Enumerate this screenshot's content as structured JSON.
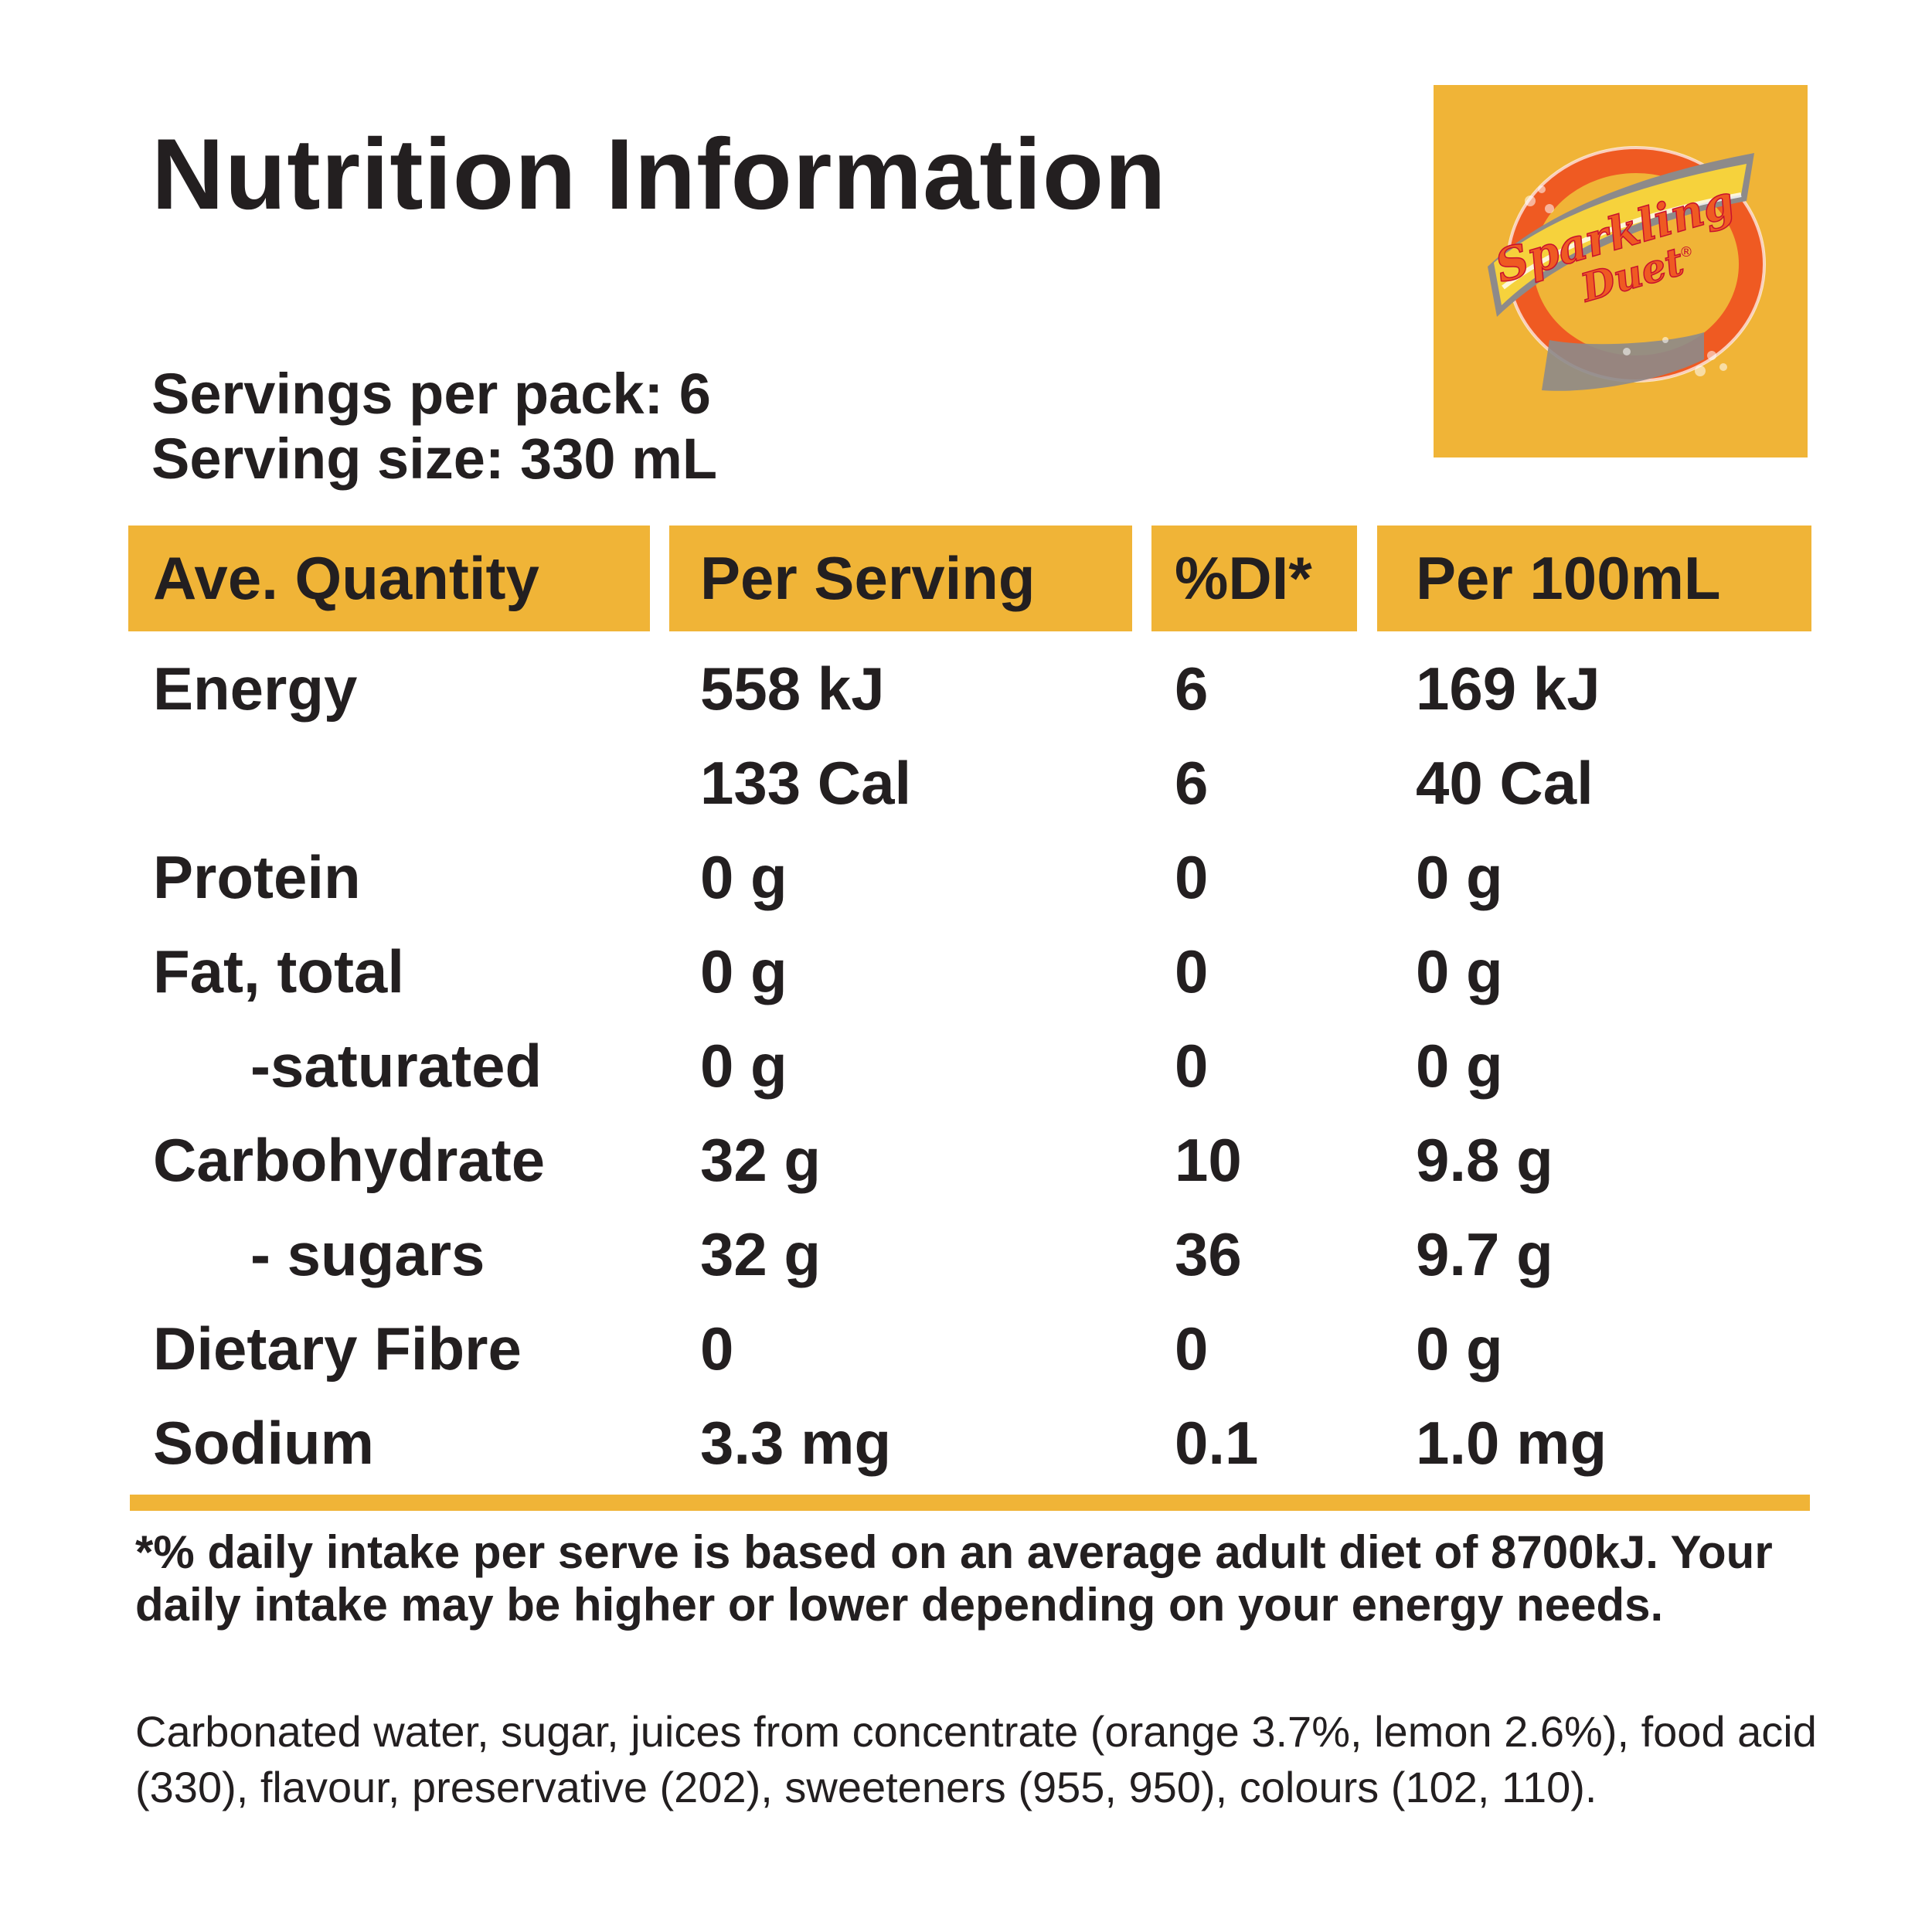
{
  "title": "Nutrition Information",
  "servings": {
    "per_pack": "Servings per pack: 6",
    "size": "Serving size: 330 mL"
  },
  "brand": {
    "logo_text_line1": "Sparkling",
    "logo_text_line2": "Duet",
    "registered": "®",
    "colors": {
      "background": "#f0b437",
      "ring": "#ef5a22",
      "ribbon": "#f6d23c"
    }
  },
  "table": {
    "headers": [
      "Ave. Quantity",
      "Per Serving",
      "%DI*",
      "Per 100mL"
    ],
    "rows": [
      {
        "name": "Energy",
        "per_serving": "558 kJ",
        "di": "6",
        "per_100ml": "169 kJ"
      },
      {
        "name": "",
        "per_serving": "133 Cal",
        "di": "6",
        "per_100ml": "40 Cal"
      },
      {
        "name": "Protein",
        "per_serving": "0 g",
        "di": "0",
        "per_100ml": "0 g"
      },
      {
        "name": "Fat, total",
        "per_serving": "0 g",
        "di": "0",
        "per_100ml": "0 g"
      },
      {
        "name": "-saturated",
        "per_serving": "0 g",
        "di": "0",
        "per_100ml": "0 g"
      },
      {
        "name": "Carbohydrate",
        "per_serving": "32 g",
        "di": "10",
        "per_100ml": "9.8 g"
      },
      {
        "name": "- sugars",
        "per_serving": "32 g",
        "di": "36",
        "per_100ml": "9.7 g"
      },
      {
        "name": "Dietary Fibre",
        "per_serving": "0",
        "di": "0",
        "per_100ml": "0 g"
      },
      {
        "name": "Sodium",
        "per_serving": "3.3 mg",
        "di": "0.1",
        "per_100ml": "1.0 mg"
      }
    ]
  },
  "footnote": "*% daily intake per serve is based on an average adult diet of 8700kJ. Your daily intake may be higher or lower depending on your energy needs.",
  "ingredients": "Carbonated water, sugar, juices from concentrate (orange 3.7%, lemon 2.6%), food acid (330), flavour, preservative (202), sweeteners (955, 950), colours (102, 110)."
}
